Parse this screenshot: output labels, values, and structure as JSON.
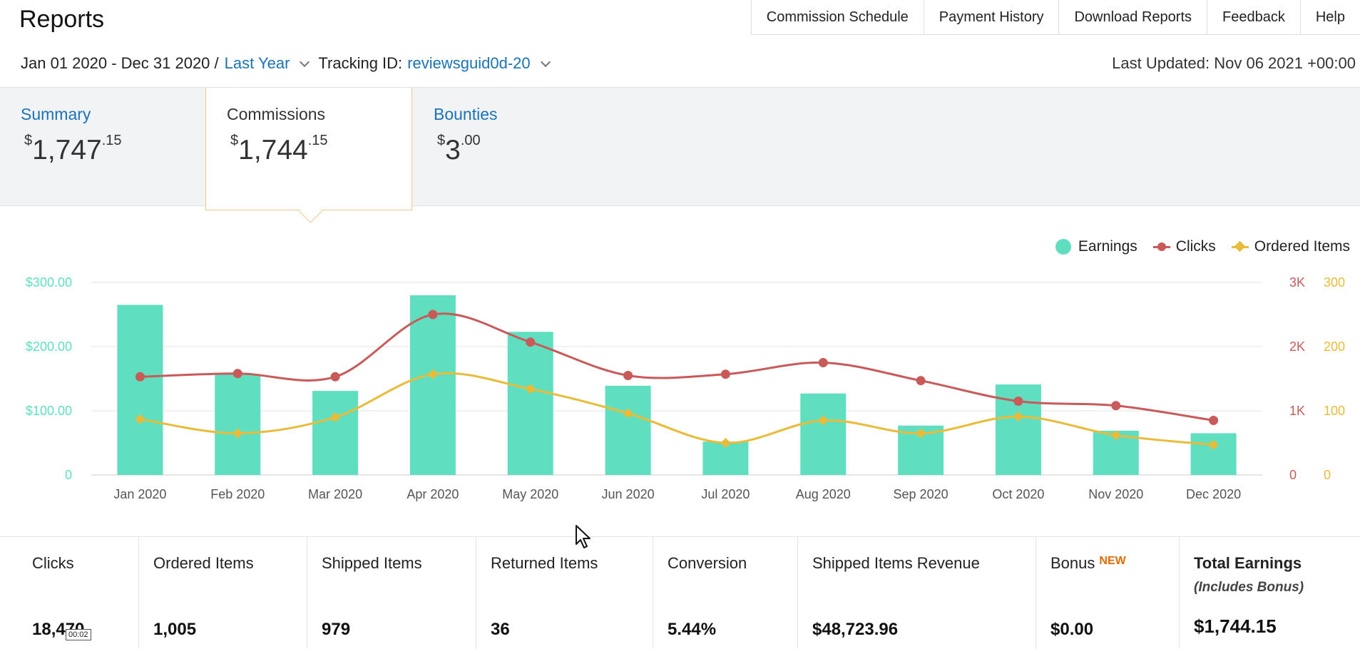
{
  "header": {
    "title": "Reports",
    "nav": [
      "Commission Schedule",
      "Payment History",
      "Download Reports",
      "Feedback",
      "Help"
    ]
  },
  "filters": {
    "date_range": "Jan 01 2020 - Dec 31 2020 /",
    "period": "Last Year",
    "tracking_label": "Tracking ID:",
    "tracking_id": "reviewsguid0d-20"
  },
  "last_updated": "Last Updated: Nov 06 2021 +00:00",
  "tabs": [
    {
      "label": "Summary",
      "currency": "$",
      "whole": "1,747",
      "cents": ".15"
    },
    {
      "label": "Commissions",
      "currency": "$",
      "whole": "1,744",
      "cents": ".15"
    },
    {
      "label": "Bounties",
      "currency": "$",
      "whole": "3",
      "cents": ".00"
    }
  ],
  "legend": {
    "earnings": "Earnings",
    "clicks": "Clicks",
    "ordered": "Ordered Items"
  },
  "colors": {
    "earnings": "#5fdfc0",
    "clicks": "#c85a5a",
    "ordered": "#eabb3a",
    "link": "#1a73b8",
    "new_badge": "#e26b00"
  },
  "chart_data": {
    "type": "bar",
    "categories": [
      "Jan 2020",
      "Feb 2020",
      "Mar 2020",
      "Apr 2020",
      "May 2020",
      "Jun 2020",
      "Jul 2020",
      "Aug 2020",
      "Sep 2020",
      "Oct 2020",
      "Nov 2020",
      "Dec 2020"
    ],
    "series": [
      {
        "name": "Earnings",
        "type": "bar",
        "axis": "left",
        "values": [
          265,
          157,
          131,
          280,
          223,
          139,
          52,
          127,
          77,
          141,
          69,
          65
        ]
      },
      {
        "name": "Clicks",
        "type": "line",
        "axis": "right-1",
        "values": [
          1530,
          1580,
          1530,
          2500,
          2070,
          1550,
          1570,
          1750,
          1470,
          1150,
          1080,
          850
        ]
      },
      {
        "name": "Ordered Items",
        "type": "line",
        "axis": "right-2",
        "values": [
          87,
          65,
          90,
          157,
          134,
          96,
          50,
          85,
          65,
          91,
          62,
          47
        ]
      }
    ],
    "left_axis": {
      "ticks": [
        "0",
        "$100.00",
        "$200.00",
        "$300.00"
      ],
      "range": [
        0,
        300
      ]
    },
    "right_axis_1": {
      "ticks": [
        "0",
        "1K",
        "2K",
        "3K"
      ],
      "range": [
        0,
        3000
      ]
    },
    "right_axis_2": {
      "ticks": [
        "0",
        "100",
        "200",
        "300"
      ],
      "range": [
        0,
        300
      ]
    },
    "legend_position": "top-right",
    "grid": true
  },
  "stats": [
    {
      "label": "Clicks",
      "value": "18,470"
    },
    {
      "label": "Ordered Items",
      "value": "1,005"
    },
    {
      "label": "Shipped Items",
      "value": "979"
    },
    {
      "label": "Returned Items",
      "value": "36"
    },
    {
      "label": "Conversion",
      "value": "5.44%"
    },
    {
      "label": "Shipped Items Revenue",
      "value": "$48,723.96"
    },
    {
      "label": "Bonus",
      "badge": "NEW",
      "value": "$0.00"
    },
    {
      "label": "Total Earnings",
      "sub": "(Includes Bonus)",
      "value": "$1,744.15"
    }
  ],
  "timestamp": "00:02"
}
